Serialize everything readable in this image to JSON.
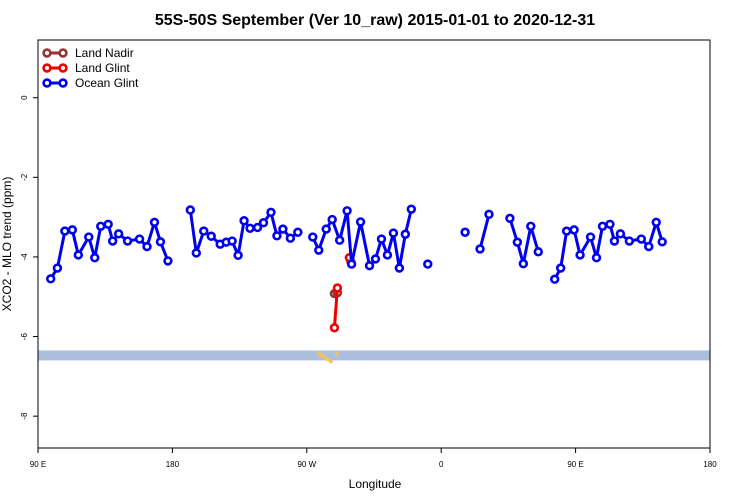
{
  "chart_data": {
    "type": "line",
    "title": "55S-50S September (Ver 10_raw)   2015-01-01 to 2020-12-31",
    "xlabel": "Longitude",
    "ylabel": "XCO2 - MLO trend (ppm)",
    "xlim": [
      90,
      540
    ],
    "ylim": [
      -8.8,
      1.45
    ],
    "x_ticks": [
      {
        "value": 90,
        "label": "90 E"
      },
      {
        "value": 180,
        "label": "180"
      },
      {
        "value": 270,
        "label": "90 W"
      },
      {
        "value": 360,
        "label": "0"
      },
      {
        "value": 450,
        "label": "90 E"
      },
      {
        "value": 540,
        "label": "180"
      }
    ],
    "y_ticks": [
      {
        "value": 0,
        "label": "0"
      },
      {
        "value": -2,
        "label": "-2"
      },
      {
        "value": -4,
        "label": "-4"
      },
      {
        "value": -6,
        "label": "-6"
      },
      {
        "value": -8,
        "label": "-8"
      }
    ],
    "legend_position": "top-left",
    "grid": false,
    "series": [
      {
        "name": "Land Nadir",
        "color": "#993333",
        "segments": [
          [
            [
              288.5,
              -4.92
            ],
            [
              290.5,
              -4.9
            ]
          ],
          [
            [
              299.5,
              -4.12
            ]
          ]
        ]
      },
      {
        "name": "Land Glint",
        "color": "#ee0000",
        "segments": [
          [
            [
              288.5,
              -5.78
            ],
            [
              290.5,
              -4.78
            ]
          ],
          [
            [
              298.5,
              -4.02
            ]
          ]
        ]
      },
      {
        "name": "Ocean Glint",
        "color": "#0000ee",
        "segments": [
          [
            [
              98.5,
              -4.55
            ],
            [
              103,
              -4.28
            ],
            [
              108,
              -3.35
            ],
            [
              113,
              -3.32
            ],
            [
              117,
              -3.95
            ],
            [
              124,
              -3.5
            ],
            [
              128,
              -4.02
            ],
            [
              132,
              -3.23
            ],
            [
              137,
              -3.18
            ],
            [
              140,
              -3.6
            ],
            [
              144,
              -3.42
            ],
            [
              150,
              -3.6
            ],
            [
              158,
              -3.55
            ],
            [
              163,
              -3.74
            ],
            [
              168,
              -3.13
            ],
            [
              172,
              -3.62
            ],
            [
              177,
              -4.1
            ]
          ],
          [
            [
              192,
              -2.82
            ],
            [
              196,
              -3.9
            ],
            [
              201,
              -3.35
            ],
            [
              206,
              -3.48
            ],
            [
              212,
              -3.68
            ],
            [
              216,
              -3.63
            ],
            [
              220,
              -3.6
            ],
            [
              224,
              -3.96
            ],
            [
              228,
              -3.09
            ],
            [
              232,
              -3.28
            ],
            [
              237,
              -3.26
            ],
            [
              241,
              -3.14
            ],
            [
              246,
              -2.88
            ],
            [
              250,
              -3.47
            ],
            [
              254,
              -3.3
            ],
            [
              259,
              -3.53
            ],
            [
              264,
              -3.38
            ]
          ],
          [
            [
              274,
              -3.5
            ],
            [
              278,
              -3.83
            ],
            [
              283,
              -3.3
            ],
            [
              287,
              -3.06
            ],
            [
              292,
              -3.58
            ],
            [
              297,
              -2.84
            ],
            [
              300,
              -4.18
            ],
            [
              306,
              -3.12
            ],
            [
              312,
              -4.22
            ],
            [
              316,
              -4.05
            ],
            [
              320,
              -3.55
            ],
            [
              324,
              -3.95
            ],
            [
              328,
              -3.4
            ],
            [
              332,
              -4.28
            ],
            [
              336,
              -3.43
            ],
            [
              340,
              -2.8
            ]
          ],
          [
            [
              351,
              -4.18
            ]
          ],
          [
            [
              376,
              -3.38
            ]
          ],
          [
            [
              386,
              -3.8
            ],
            [
              392,
              -2.93
            ]
          ],
          [
            [
              406,
              -3.03
            ],
            [
              411,
              -3.63
            ],
            [
              415,
              -4.17
            ],
            [
              420,
              -3.23
            ],
            [
              425,
              -3.87
            ]
          ],
          [
            [
              436,
              -4.56
            ],
            [
              440,
              -4.28
            ],
            [
              444,
              -3.35
            ],
            [
              449,
              -3.32
            ],
            [
              453,
              -3.95
            ],
            [
              460,
              -3.5
            ],
            [
              464,
              -4.02
            ],
            [
              468,
              -3.23
            ],
            [
              473,
              -3.18
            ],
            [
              476,
              -3.6
            ],
            [
              480,
              -3.42
            ],
            [
              486,
              -3.6
            ],
            [
              494,
              -3.55
            ],
            [
              499,
              -3.74
            ],
            [
              504,
              -3.13
            ],
            [
              508,
              -3.62
            ]
          ]
        ]
      }
    ],
    "band": {
      "ymin": -6.6,
      "ymax": -6.35,
      "color": "#a9bfdd"
    },
    "band_points": {
      "color": "#f2c45a",
      "points": [
        [
          278,
          -6.42
        ],
        [
          280,
          -6.48
        ],
        [
          282,
          -6.52
        ],
        [
          284,
          -6.57
        ],
        [
          286,
          -6.62
        ],
        [
          290,
          -6.44
        ]
      ]
    }
  }
}
